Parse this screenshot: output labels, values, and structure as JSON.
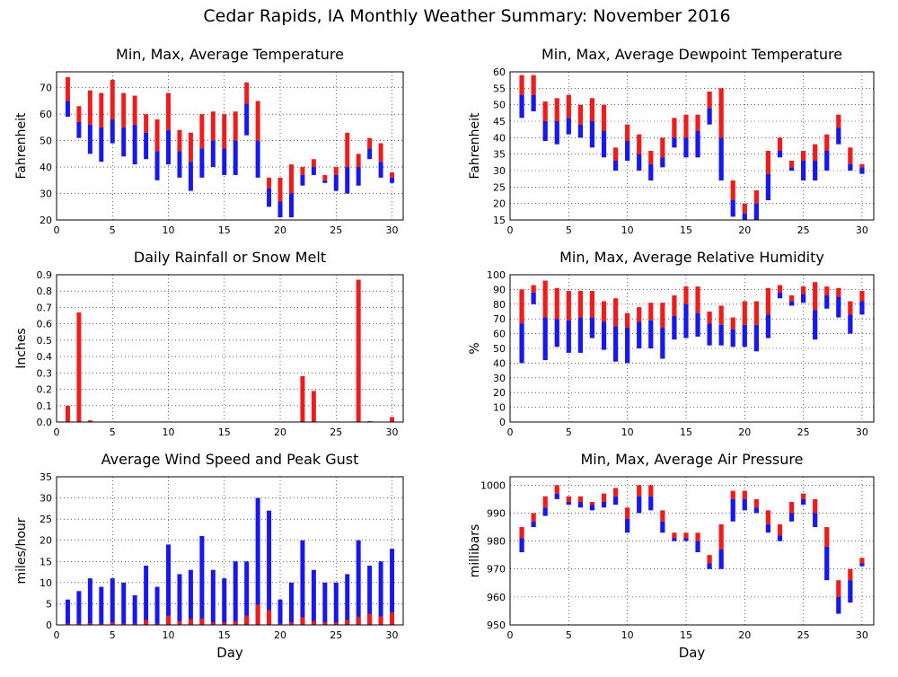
{
  "page_title": "Cedar Rapids, IA Monthly Weather Summary: November 2016",
  "colors": {
    "max_bar": "#ee1c1c",
    "min_bar": "#1717ee",
    "grid": "#000000"
  },
  "chart_data": [
    {
      "id": "temp",
      "type": "bar",
      "title": "Min, Max, Average Temperature",
      "ylabel": "Fahrenheit",
      "xlabel": "",
      "xlim": [
        0,
        31
      ],
      "ylim": [
        20,
        76
      ],
      "yticks": [
        20,
        30,
        40,
        50,
        60,
        70
      ],
      "xticks": [
        0,
        5,
        10,
        15,
        20,
        25,
        30
      ],
      "grid": "dotted",
      "series": [
        {
          "name": "Max",
          "values": [
            74,
            63,
            69,
            68,
            73,
            68,
            67,
            60,
            58,
            68,
            54,
            53,
            60,
            61,
            60,
            61,
            72,
            65,
            36,
            36,
            41,
            40,
            43,
            37,
            40,
            53,
            45,
            51,
            49,
            38
          ]
        },
        {
          "name": "Average",
          "values": [
            65,
            57,
            56,
            55,
            58,
            55,
            56,
            53,
            46,
            54,
            46,
            42,
            47,
            50,
            47,
            50,
            64,
            50,
            32,
            27,
            30,
            37,
            40,
            35,
            37,
            40,
            40,
            47,
            42,
            36
          ]
        },
        {
          "name": "Min",
          "values": [
            59,
            51,
            45,
            42,
            49,
            44,
            41,
            43,
            35,
            41,
            36,
            31,
            36,
            40,
            37,
            37,
            52,
            36,
            25,
            21,
            21,
            33,
            37,
            34,
            31,
            30,
            33,
            43,
            36,
            34
          ]
        }
      ]
    },
    {
      "id": "dewpoint",
      "type": "bar",
      "title": "Min, Max, Average Dewpoint Temperature",
      "ylabel": "Fahrenheit",
      "xlabel": "",
      "xlim": [
        0,
        31
      ],
      "ylim": [
        15,
        60
      ],
      "yticks": [
        15,
        20,
        25,
        30,
        35,
        40,
        45,
        50,
        55,
        60
      ],
      "xticks": [
        0,
        5,
        10,
        15,
        20,
        25,
        30
      ],
      "grid": "dotted",
      "series": [
        {
          "name": "Max",
          "values": [
            59,
            59,
            51,
            52,
            53,
            50,
            52,
            50,
            37,
            44,
            41,
            36,
            40,
            46,
            47,
            47,
            54,
            55,
            27,
            20,
            24,
            36,
            40,
            33,
            36,
            38,
            41,
            47,
            37,
            32
          ]
        },
        {
          "name": "Average",
          "values": [
            53,
            53,
            45,
            45,
            46,
            44,
            45,
            42,
            33,
            39,
            35,
            32,
            34,
            40,
            40,
            42,
            49,
            40,
            21,
            17,
            20,
            29,
            36,
            31,
            33,
            33,
            36,
            43,
            32,
            31
          ]
        },
        {
          "name": "Min",
          "values": [
            46,
            48,
            39,
            38,
            41,
            40,
            37,
            34,
            30,
            33,
            30,
            27,
            31,
            37,
            34,
            34,
            44,
            27,
            16,
            15,
            15,
            21,
            34,
            30,
            27,
            27,
            30,
            38,
            30,
            29
          ]
        }
      ]
    },
    {
      "id": "rain",
      "type": "bar",
      "title": "Daily Rainfall or Snow Melt",
      "ylabel": "Inches",
      "xlabel": "",
      "xlim": [
        0,
        31
      ],
      "ylim": [
        0,
        0.9
      ],
      "yticks": [
        "0.0",
        "0.1",
        "0.2",
        "0.3",
        "0.4",
        "0.5",
        "0.6",
        "0.7",
        "0.8",
        "0.9"
      ],
      "xticks": [
        0,
        5,
        10,
        15,
        20,
        25,
        30
      ],
      "grid": "dotted",
      "series": [
        {
          "name": "Rainfall",
          "values": [
            0.1,
            0.67,
            0.01,
            0,
            0,
            0,
            0,
            0,
            0,
            0,
            0,
            0,
            0,
            0,
            0,
            0,
            0,
            0,
            0,
            0,
            0,
            0.28,
            0.19,
            0,
            0,
            0,
            0.87,
            0.005,
            0,
            0.03
          ]
        }
      ]
    },
    {
      "id": "humidity",
      "type": "bar",
      "title": "Min, Max, Average Relative Humidity",
      "ylabel": "%",
      "xlabel": "",
      "xlim": [
        0,
        31
      ],
      "ylim": [
        0,
        100
      ],
      "yticks": [
        0,
        10,
        20,
        30,
        40,
        50,
        60,
        70,
        80,
        90,
        100
      ],
      "xticks": [
        0,
        5,
        10,
        15,
        20,
        25,
        30
      ],
      "grid": "dotted",
      "series": [
        {
          "name": "Max",
          "values": [
            90,
            93,
            96,
            91,
            89,
            89,
            89,
            82,
            84,
            74,
            78,
            81,
            81,
            86,
            92,
            92,
            75,
            79,
            71,
            82,
            82,
            91,
            93,
            86,
            92,
            95,
            92,
            91,
            82,
            89
          ]
        },
        {
          "name": "Average",
          "values": [
            67,
            88,
            71,
            70,
            69,
            71,
            71,
            68,
            65,
            64,
            68,
            69,
            64,
            72,
            80,
            74,
            67,
            66,
            63,
            66,
            66,
            73,
            88,
            82,
            87,
            76,
            86,
            85,
            73,
            82
          ]
        },
        {
          "name": "Min",
          "values": [
            40,
            80,
            42,
            51,
            47,
            47,
            57,
            49,
            41,
            40,
            50,
            50,
            43,
            56,
            57,
            58,
            52,
            52,
            51,
            51,
            48,
            57,
            84,
            79,
            81,
            56,
            77,
            71,
            60,
            73
          ]
        }
      ]
    },
    {
      "id": "wind",
      "type": "bar",
      "title": "Average Wind Speed and Peak Gust",
      "ylabel": "miles/hour",
      "xlabel": "Day",
      "xlim": [
        0,
        31
      ],
      "ylim": [
        0,
        35
      ],
      "yticks": [
        0,
        5,
        10,
        15,
        20,
        25,
        30,
        35
      ],
      "xticks": [
        0,
        5,
        10,
        15,
        20,
        25,
        30
      ],
      "grid": "dotted",
      "series": [
        {
          "name": "Peak Gust",
          "values": [
            6,
            8,
            11,
            9,
            11,
            10,
            7,
            14,
            9,
            19,
            12,
            13,
            21,
            13,
            11,
            15,
            15,
            30,
            27,
            6,
            10,
            20,
            13,
            10,
            10,
            12,
            20,
            14,
            15,
            18
          ]
        },
        {
          "name": "Average Wind Speed",
          "values": [
            0.3,
            0.3,
            0.4,
            0.3,
            0.6,
            0.3,
            0.3,
            1.2,
            0.3,
            2.2,
            0.9,
            1.4,
            1.5,
            0.6,
            0.6,
            0.9,
            2.2,
            4.8,
            3.5,
            0.3,
            0.6,
            1.8,
            0.9,
            0.6,
            0.6,
            1.2,
            1.9,
            2.6,
            2.0,
            3.0
          ]
        }
      ]
    },
    {
      "id": "pressure",
      "type": "bar",
      "title": "Min, Max, Average Air Pressure",
      "ylabel": "millibars",
      "xlabel": "Day",
      "xlim": [
        0,
        31
      ],
      "ylim": [
        950,
        1003
      ],
      "yticks": [
        950,
        960,
        970,
        980,
        990,
        1000
      ],
      "xticks": [
        0,
        5,
        10,
        15,
        20,
        25,
        30
      ],
      "grid": "dotted",
      "series": [
        {
          "name": "Max",
          "values": [
            985,
            990,
            996,
            1000,
            996,
            996,
            994,
            997,
            999,
            992,
            1000,
            1000,
            991,
            983,
            983,
            983,
            975,
            986,
            998,
            998,
            995,
            991,
            986,
            994,
            997,
            995,
            985,
            966,
            970,
            974
          ]
        },
        {
          "name": "Average",
          "values": [
            981,
            987,
            992,
            997,
            994,
            994,
            993,
            994,
            996,
            988,
            996,
            996,
            987,
            981,
            981,
            980,
            972,
            977,
            995,
            995,
            992,
            986,
            982,
            990,
            995,
            990,
            978,
            960,
            966,
            972
          ]
        },
        {
          "name": "Min",
          "values": [
            976,
            985,
            989,
            995,
            993,
            992,
            991,
            992,
            993,
            983,
            990,
            991,
            983,
            980,
            980,
            976,
            970,
            970,
            987,
            991,
            990,
            983,
            980,
            987,
            993,
            985,
            966,
            954,
            958,
            971
          ]
        }
      ]
    }
  ]
}
